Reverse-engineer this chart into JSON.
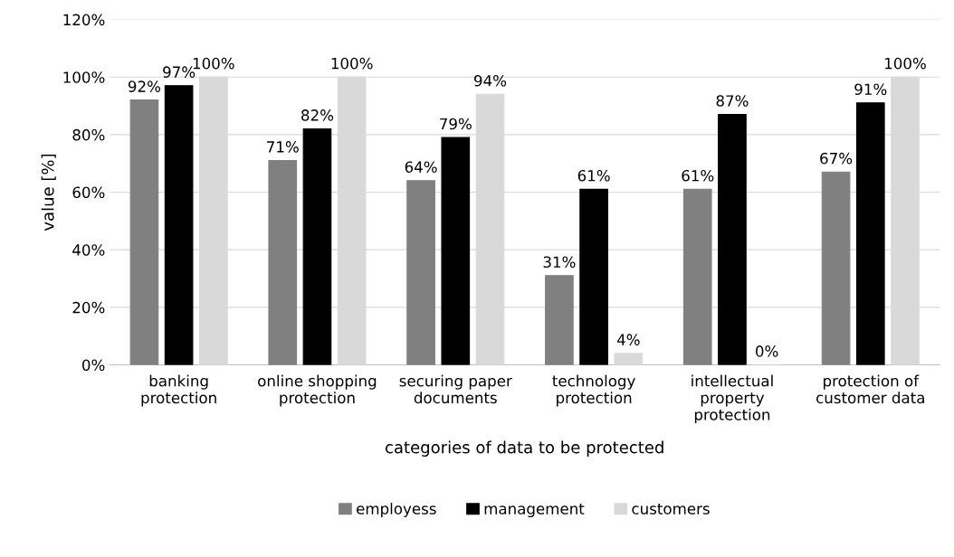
{
  "chart_data": {
    "type": "bar",
    "xlabel": "categories of data to be protected",
    "ylabel": "value [%]",
    "categories": [
      "banking\nprotection",
      "online shopping\nprotection",
      "securing paper\ndocuments",
      "technology\nprotection",
      "intellectual\nproperty\nprotection",
      "protection of\ncustomer data"
    ],
    "series": [
      {
        "name": "employess",
        "color": "#808080",
        "values": [
          92,
          71,
          64,
          31,
          61,
          67
        ],
        "value_labels": [
          "92%",
          "71%",
          "64%",
          "31%",
          "61%",
          "67%"
        ]
      },
      {
        "name": "management",
        "color": "#000000",
        "values": [
          97,
          82,
          79,
          61,
          87,
          91
        ],
        "value_labels": [
          "97%",
          "82%",
          "79%",
          "61%",
          "87%",
          "91%"
        ]
      },
      {
        "name": "customers",
        "color": "#d9d9d9",
        "values": [
          100,
          100,
          94,
          4,
          0,
          100
        ],
        "value_labels": [
          "100%",
          "100%",
          "94%",
          "4%",
          "0%",
          "100%"
        ]
      }
    ],
    "ylim": [
      0,
      120
    ],
    "yticks": [
      {
        "value": 0,
        "label": "0%"
      },
      {
        "value": 20,
        "label": "20%"
      },
      {
        "value": 40,
        "label": "40%"
      },
      {
        "value": 60,
        "label": "60%"
      },
      {
        "value": 80,
        "label": "80%"
      },
      {
        "value": 100,
        "label": "100%"
      },
      {
        "value": 120,
        "label": "120%"
      }
    ],
    "grid": "y",
    "legend": "bottom"
  }
}
